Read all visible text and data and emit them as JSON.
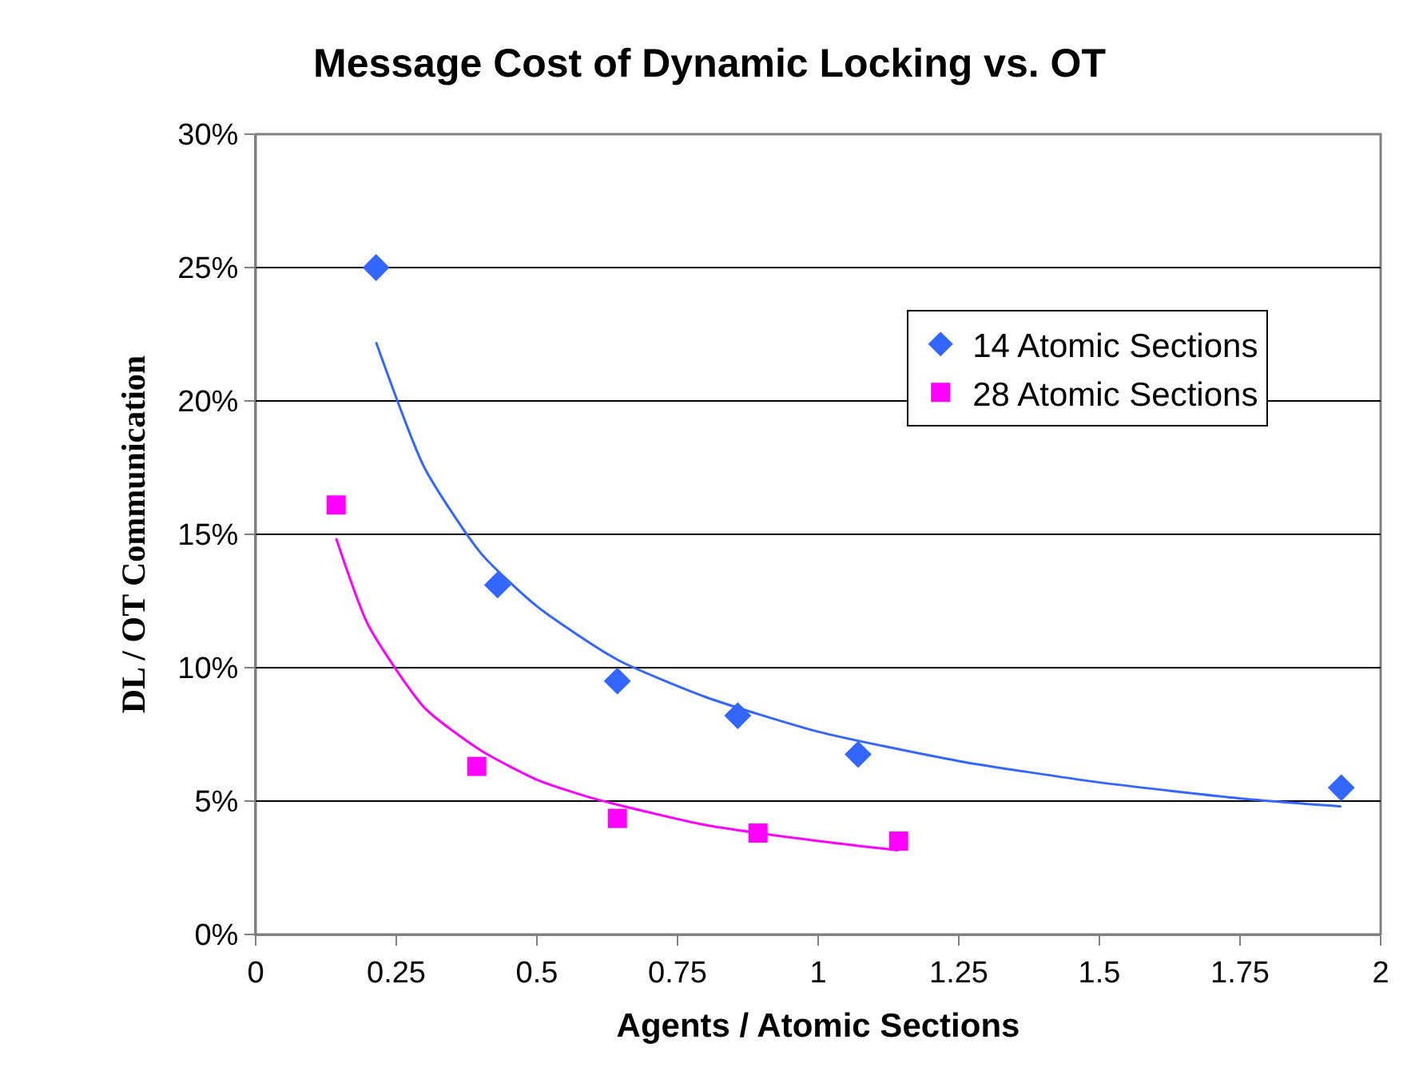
{
  "chart_data": {
    "type": "scatter",
    "title": "Message Cost of Dynamic Locking vs. OT",
    "xlabel": "Agents / Atomic Sections",
    "ylabel": "DL / OT Communication",
    "series": [
      {
        "name": "14 Atomic Sections",
        "marker": "diamond",
        "color": "#3366ff",
        "x": [
          0.214,
          0.43,
          0.643,
          0.857,
          1.071,
          1.93
        ],
        "values": [
          25,
          13.1,
          9.5,
          8.2,
          6.75,
          5.5
        ]
      },
      {
        "name": "28 Atomic Sections",
        "marker": "square",
        "color": "#ff00ff",
        "x": [
          0.143,
          0.393,
          0.643,
          0.893,
          1.143
        ],
        "values": [
          16.1,
          6.3,
          4.35,
          3.8,
          3.5
        ]
      },
      {
        "type": "line",
        "marker": "none",
        "color": "#3366ff",
        "x": [
          0.214,
          0.3,
          0.4,
          0.5,
          0.643,
          0.8,
          1.0,
          1.25,
          1.5,
          1.75,
          1.93
        ],
        "values": [
          22.2,
          17.5,
          14.3,
          12.3,
          10.3,
          8.9,
          7.6,
          6.5,
          5.7,
          5.1,
          4.8
        ]
      },
      {
        "type": "line",
        "marker": "none",
        "color": "#ff00ff",
        "x": [
          0.143,
          0.2,
          0.3,
          0.4,
          0.5,
          0.6,
          0.8,
          1.0,
          1.143
        ],
        "values": [
          14.85,
          11.6,
          8.5,
          6.9,
          5.8,
          5.1,
          4.1,
          3.5,
          3.15
        ]
      }
    ],
    "xlim": [
      0,
      2
    ],
    "xticks": [
      0,
      0.25,
      0.5,
      0.75,
      1,
      1.25,
      1.5,
      1.75,
      2
    ],
    "ylim": [
      0,
      30
    ],
    "yticks": [
      {
        "value": 0,
        "label": "0%"
      },
      {
        "value": 5,
        "label": "5%"
      },
      {
        "value": 10,
        "label": "10%"
      },
      {
        "value": 15,
        "label": "15%"
      },
      {
        "value": 20,
        "label": "20%"
      },
      {
        "value": 25,
        "label": "25%"
      },
      {
        "value": 30,
        "label": "30%"
      }
    ],
    "grid": "y",
    "legend": "top right"
  }
}
